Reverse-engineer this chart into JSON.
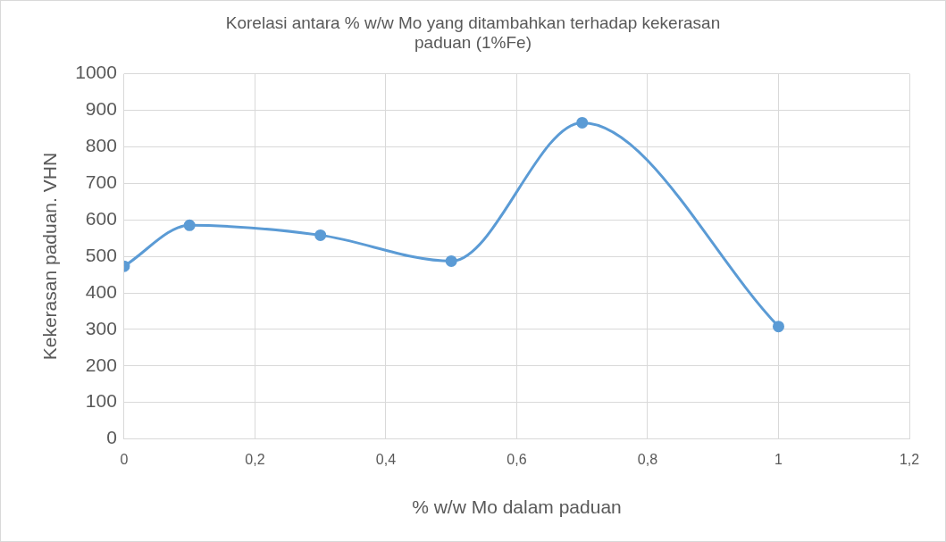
{
  "chart_data": {
    "type": "line",
    "title": [
      "Korelasi antara % w/w Mo yang ditambahkan terhadap kekerasan",
      "paduan (1%Fe)"
    ],
    "xlabel": "% w/w Mo dalam paduan",
    "ylabel": "Kekerasan paduan. VHN",
    "x": [
      0,
      0.1,
      0.3,
      0.5,
      0.7,
      1
    ],
    "series": [
      {
        "color": "#5b9bd5",
        "values": [
          473,
          585,
          558,
          487,
          866,
          308
        ]
      }
    ],
    "xlim": [
      0,
      1.2
    ],
    "xticks": [
      0,
      {
        "value": 0.2,
        "label": "0,2"
      },
      {
        "value": 0.4,
        "label": "0,4"
      },
      {
        "value": 0.6,
        "label": "0,6"
      },
      {
        "value": 0.8,
        "label": "0,8"
      },
      1,
      {
        "value": 1.2,
        "label": "1,2"
      }
    ],
    "ylim": [
      0,
      1000
    ],
    "yticks": [
      0,
      100,
      200,
      300,
      400,
      500,
      600,
      700,
      800,
      900,
      1000
    ],
    "grid": true,
    "legend": false,
    "marker": "circle",
    "line_style": "solid"
  }
}
